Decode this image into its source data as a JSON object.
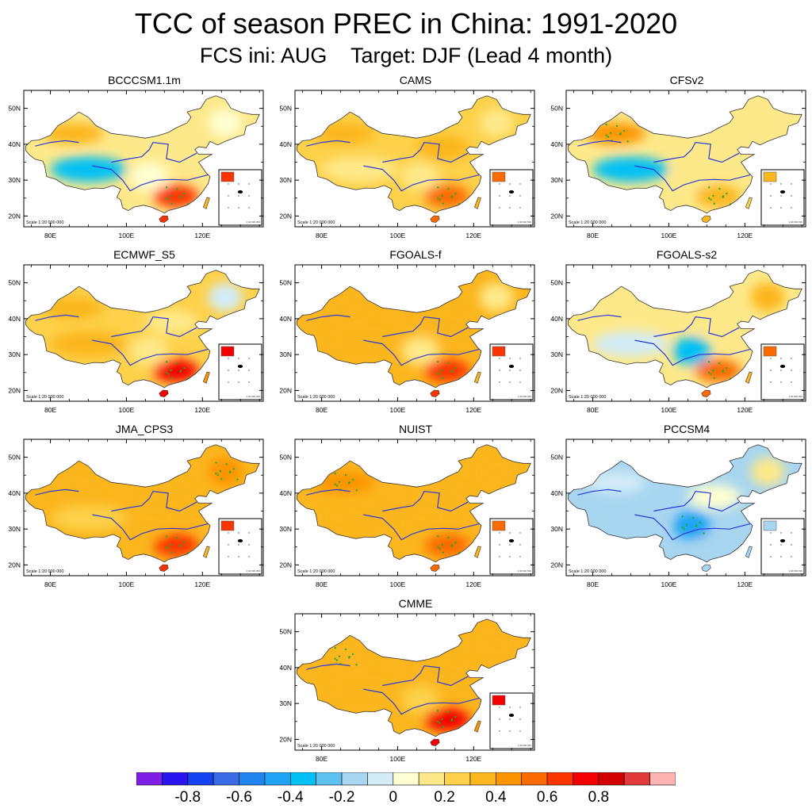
{
  "header": {
    "title": "TCC of season PREC in China: 1991-2020",
    "subtitle": "FCS ini: AUG    Target: DJF (Lead 4 month)"
  },
  "map": {
    "lat_ticks": [
      "20N",
      "30N",
      "40N",
      "50N"
    ],
    "lon_ticks": [
      "80E",
      "100E",
      "120E"
    ],
    "scale_text": "Scale 1:20 000 000",
    "inset_scale_text": "1:40 000 000"
  },
  "colors": {
    "palette": [
      "#7f1fe6",
      "#2a14f0",
      "#1442f0",
      "#3a6ae6",
      "#2185f0",
      "#1fa4f5",
      "#00c0f5",
      "#5ec3f0",
      "#a8d5f0",
      "#d3ecf8",
      "#fefed2",
      "#fee98a",
      "#fdd14a",
      "#fcb61e",
      "#fc9400",
      "#fc6a00",
      "#fc3400",
      "#f50000",
      "#d20000",
      "#e03a3a",
      "#ffb4b4"
    ]
  },
  "colorbar": {
    "labels": [
      "-0.8",
      "-0.6",
      "-0.4",
      "-0.2",
      "0",
      "0.2",
      "0.4",
      "0.6",
      "0.8"
    ]
  },
  "chart_data": {
    "type": "heatmap",
    "variable": "TCC of season PREC",
    "region": "China",
    "period": "1991-2020",
    "init_month": "AUG",
    "target_season": "DJF",
    "lead_months": 4,
    "lon_range": [
      73,
      136
    ],
    "lat_range": [
      17,
      55
    ],
    "colorbar_range": [
      -0.9,
      0.9
    ],
    "colorbar_step": 0.1,
    "models": [
      {
        "name": "BCCCSM1.1m",
        "north": 0.2,
        "tibet": -0.3,
        "northwest": 0.3,
        "central": 0.05,
        "south": 0.6,
        "northeast": 0.0
      },
      {
        "name": "CAMS",
        "north": 0.3,
        "tibet": 0.1,
        "northwest": 0.35,
        "central": 0.2,
        "south": 0.55,
        "northeast": 0.2
      },
      {
        "name": "CFSv2",
        "north": 0.2,
        "tibet": -0.3,
        "northwest": 0.45,
        "central": 0.1,
        "south": 0.4,
        "northeast": 0.2
      },
      {
        "name": "ECMWF_S5",
        "north": 0.2,
        "tibet": 0.3,
        "northwest": 0.3,
        "central": 0.1,
        "south": 0.75,
        "northeast": -0.1
      },
      {
        "name": "FGOALS-f",
        "north": 0.3,
        "tibet": 0.3,
        "northwest": 0.3,
        "central": 0.2,
        "south": 0.6,
        "northeast": 0.2
      },
      {
        "name": "FGOALS-s2",
        "north": 0.1,
        "tibet": -0.1,
        "northwest": 0.2,
        "central": -0.3,
        "south": 0.55,
        "northeast": 0.3
      },
      {
        "name": "JMA_CPS3",
        "north": 0.35,
        "tibet": 0.25,
        "northwest": 0.3,
        "central": 0.35,
        "south": 0.6,
        "northeast": 0.45
      },
      {
        "name": "NUIST",
        "north": 0.35,
        "tibet": 0.3,
        "northwest": 0.45,
        "central": 0.3,
        "south": 0.5,
        "northeast": 0.3
      },
      {
        "name": "PCCSM4",
        "north": 0.0,
        "tibet": -0.2,
        "northwest": -0.1,
        "central": -0.4,
        "south": -0.2,
        "northeast": 0.2
      },
      {
        "name": "CMME",
        "north": 0.35,
        "tibet": 0.3,
        "northwest": 0.4,
        "central": 0.25,
        "south": 0.75,
        "northeast": 0.35
      }
    ]
  }
}
